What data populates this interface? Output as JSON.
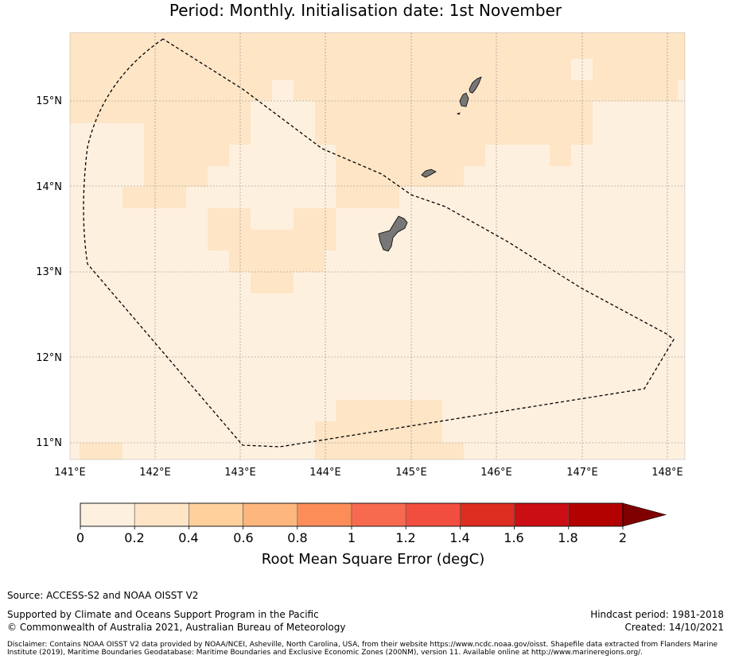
{
  "title": {
    "subtitle": "Period: Monthly. Initialisation date: 1st November"
  },
  "map": {
    "lon_ticks": [
      "141°E",
      "142°E",
      "143°E",
      "144°E",
      "145°E",
      "146°E",
      "147°E",
      "148°E"
    ],
    "lat_ticks": [
      "15°N",
      "14°N",
      "13°N",
      "12°N",
      "11°N"
    ],
    "lon_range": [
      141,
      148.2
    ],
    "lat_range": [
      10.8,
      15.8
    ],
    "cell_colors": {
      "low": "#fef0df",
      "mid": "#fde5c6"
    },
    "land_color": "#777777",
    "eez_line_color": "#000000"
  },
  "colorbar": {
    "ticks": [
      "0",
      "0.2",
      "0.4",
      "0.6",
      "0.8",
      "1",
      "1.2",
      "1.4",
      "1.6",
      "1.8",
      "2"
    ],
    "colors": [
      "#fef0df",
      "#fee5c6",
      "#fdd09c",
      "#fdb67d",
      "#fc8d59",
      "#f76a50",
      "#f24e3f",
      "#dc2d20",
      "#cb0e14",
      "#b30000",
      "#7f0000"
    ],
    "label": "Root Mean Square Error (degC)"
  },
  "footer": {
    "source": "Source: ACCESS-S2 and NOAA OISST V2",
    "support": "Supported by Climate and Oceans Support Program in the Pacific",
    "copyright": "© Commonwealth of Australia 2021, Australian Bureau of Meteorology",
    "hindcast": "Hindcast period: 1981-2018",
    "created": "Created: 14/10/2021",
    "disclaimer": "Disclaimer: Contains NOAA OISST V2 data provided by NOAA/NCEI, Asheville, North Carolina, USA, from their website https://www.ncdc.noaa.gov/oisst. Shapefile data extracted from Flanders Marine Institute (2019), Maritime Boundaries Geodatabase: Maritime Boundaries and Exclusive Economic Zones (200NM), version 11. Available online at http://www.marineregions.org/."
  }
}
